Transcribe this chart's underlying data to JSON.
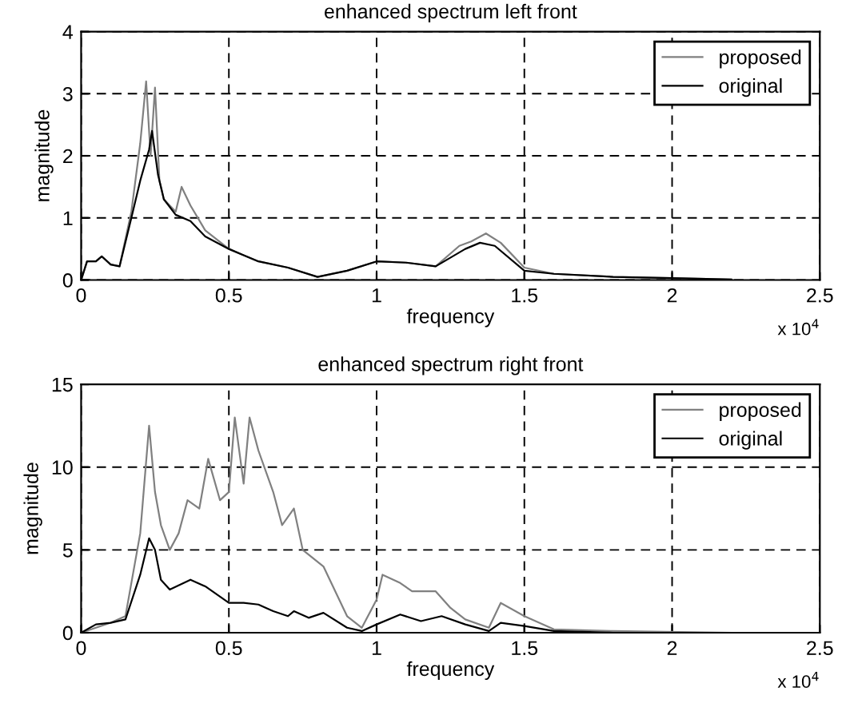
{
  "chart_data": [
    {
      "type": "line",
      "title": "enhanced spectrum left front",
      "xlabel": "frequency",
      "ylabel": "magnitude",
      "annotations": [
        "x 10$^{4}$"
      ],
      "xlim": [
        0,
        2.5
      ],
      "xticks": [
        0,
        0.5,
        1,
        1.5,
        2,
        2.5
      ],
      "ylim": [
        0,
        4
      ],
      "yticks": [
        0,
        1,
        2,
        3,
        4
      ],
      "grid": true,
      "legend": "top right",
      "series": [
        {
          "name": "proposed",
          "color": "#808080",
          "x": [
            0,
            0.02,
            0.05,
            0.07,
            0.1,
            0.13,
            0.17,
            0.2,
            0.22,
            0.235,
            0.25,
            0.265,
            0.28,
            0.3,
            0.32,
            0.34,
            0.36,
            0.37,
            0.42,
            0.5,
            0.55,
            0.6,
            0.7,
            0.8,
            0.9,
            1.0,
            1.1,
            1.2,
            1.28,
            1.32,
            1.37,
            1.42,
            1.5,
            1.6,
            1.8,
            2.0,
            2.2
          ],
          "values": [
            0,
            0.3,
            0.3,
            0.38,
            0.25,
            0.22,
            1.1,
            2.2,
            3.2,
            2.0,
            3.1,
            1.6,
            1.3,
            1.2,
            1.1,
            1.5,
            1.3,
            1.2,
            0.8,
            0.5,
            0.4,
            0.3,
            0.2,
            0.05,
            0.15,
            0.3,
            0.28,
            0.22,
            0.55,
            0.62,
            0.75,
            0.6,
            0.2,
            0.1,
            0.05,
            0.03,
            0.01
          ]
        },
        {
          "name": "original",
          "color": "#000000",
          "x": [
            0,
            0.02,
            0.05,
            0.07,
            0.1,
            0.13,
            0.17,
            0.2,
            0.23,
            0.24,
            0.26,
            0.28,
            0.32,
            0.37,
            0.42,
            0.5,
            0.55,
            0.6,
            0.7,
            0.8,
            0.9,
            1.0,
            1.1,
            1.2,
            1.3,
            1.35,
            1.4,
            1.5,
            1.6,
            1.8,
            2.0,
            2.2
          ],
          "values": [
            0,
            0.3,
            0.3,
            0.38,
            0.25,
            0.22,
            1.0,
            1.6,
            2.1,
            2.4,
            1.7,
            1.3,
            1.05,
            0.95,
            0.7,
            0.5,
            0.4,
            0.3,
            0.2,
            0.05,
            0.15,
            0.3,
            0.28,
            0.22,
            0.5,
            0.6,
            0.55,
            0.15,
            0.1,
            0.05,
            0.03,
            0.01
          ]
        }
      ]
    },
    {
      "type": "line",
      "title": "enhanced spectrum right front",
      "xlabel": "frequency",
      "ylabel": "magnitude",
      "annotations": [
        "x 10$^{4}$"
      ],
      "xlim": [
        0,
        2.5
      ],
      "xticks": [
        0,
        0.5,
        1,
        1.5,
        2,
        2.5
      ],
      "ylim": [
        0,
        15
      ],
      "yticks": [
        0,
        5,
        10,
        15
      ],
      "grid": true,
      "legend": "top right",
      "series": [
        {
          "name": "proposed",
          "color": "#808080",
          "x": [
            0,
            0.1,
            0.15,
            0.2,
            0.23,
            0.25,
            0.27,
            0.3,
            0.33,
            0.36,
            0.4,
            0.43,
            0.47,
            0.5,
            0.52,
            0.55,
            0.57,
            0.6,
            0.65,
            0.68,
            0.72,
            0.75,
            0.82,
            0.9,
            0.95,
            1.0,
            1.02,
            1.08,
            1.12,
            1.2,
            1.25,
            1.3,
            1.38,
            1.42,
            1.5,
            1.6,
            1.8,
            2.2
          ],
          "values": [
            0,
            0.6,
            1,
            6,
            12.5,
            8.5,
            6.5,
            5,
            6,
            8,
            7.5,
            10.5,
            8,
            8.5,
            13,
            9,
            13,
            11,
            8.5,
            6.5,
            7.5,
            5,
            4,
            1,
            0.3,
            2,
            3.5,
            3,
            2.5,
            2.5,
            1.5,
            0.8,
            0.3,
            1.8,
            1.0,
            0.2,
            0.1,
            0
          ]
        },
        {
          "name": "original",
          "color": "#000000",
          "x": [
            0,
            0.05,
            0.1,
            0.15,
            0.2,
            0.23,
            0.25,
            0.27,
            0.3,
            0.37,
            0.42,
            0.5,
            0.55,
            0.6,
            0.65,
            0.7,
            0.72,
            0.77,
            0.82,
            0.9,
            0.95,
            1.0,
            1.08,
            1.15,
            1.22,
            1.3,
            1.38,
            1.42,
            1.5,
            1.6,
            1.8,
            2.2
          ],
          "values": [
            0,
            0.5,
            0.6,
            0.8,
            3.5,
            5.7,
            5,
            3.2,
            2.6,
            3.2,
            2.8,
            1.8,
            1.8,
            1.7,
            1.3,
            1,
            1.3,
            0.9,
            1.2,
            0.3,
            0.1,
            0.5,
            1.1,
            0.7,
            1.0,
            0.5,
            0.1,
            0.6,
            0.4,
            0.1,
            0,
            0
          ]
        }
      ]
    }
  ]
}
